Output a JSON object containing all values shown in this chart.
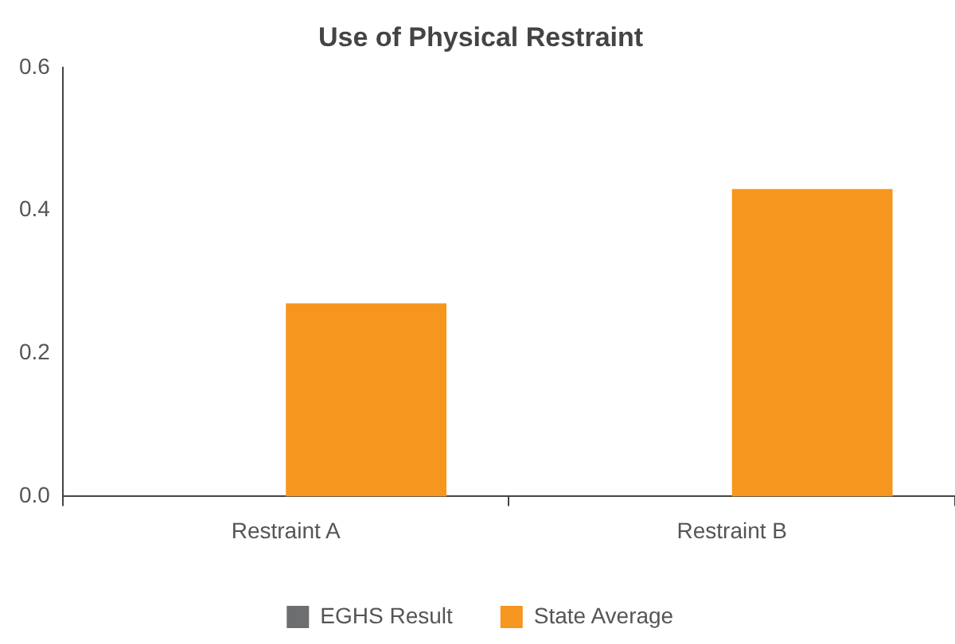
{
  "chart_data": {
    "type": "bar",
    "title": "Use of Physical Restraint",
    "categories": [
      "Restraint A",
      "Restraint B"
    ],
    "series": [
      {
        "name": "EGHS Result",
        "color": "#6d6e70",
        "values": [
          0,
          0
        ]
      },
      {
        "name": "State Average",
        "color": "#f7961e",
        "values": [
          0.27,
          0.43
        ]
      }
    ],
    "ylim": [
      0,
      0.6
    ],
    "yticks": [
      {
        "value": 0,
        "label": "0.0"
      },
      {
        "value": 0.2,
        "label": "0.2"
      },
      {
        "value": 0.4,
        "label": "0.4"
      },
      {
        "value": 0.6,
        "label": "0.6"
      }
    ],
    "grid": false,
    "legend": "bottom"
  }
}
